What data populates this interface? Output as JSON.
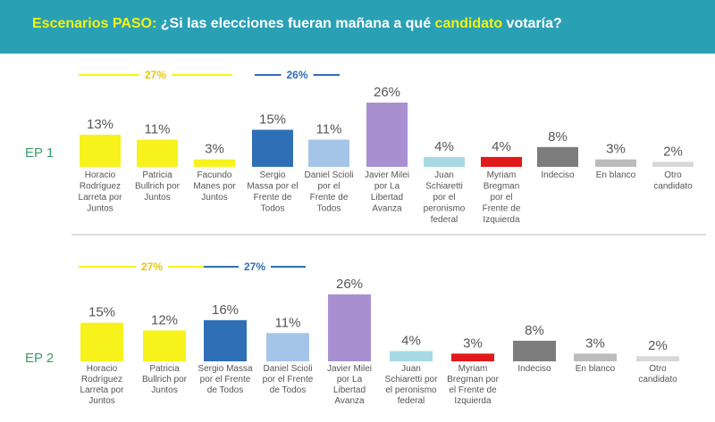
{
  "header": {
    "title_prefix": "Escenarios PASO:",
    "title_mid": " ¿Si las elecciones fueran mañana a qué ",
    "title_highlight": "candidato",
    "title_suffix": " votaría?"
  },
  "colors": {
    "header_bg": "#2aa0b4",
    "yellow": "#f7f21c",
    "dark_blue": "#2e6fb5",
    "light_blue": "#a4c5e8",
    "purple": "#a88fd0",
    "cyan": "#a7d9e5",
    "red": "#e2191b",
    "dark_gray": "#7d7d7d",
    "mid_gray": "#bcbcbc",
    "light_gray": "#d8d8d8"
  },
  "chart_data": [
    {
      "type": "bar",
      "name": "EP 1",
      "categories": [
        "Horacio Rodríguez Larreta por Juntos",
        "Patricia Bullrich por Juntos",
        "Facundo Manes por Juntos",
        "Sergio Massa por el Frente de Todos",
        "Daniel Scioli por el Frente de Todos",
        "Javier Milei por La Libertad Avanza",
        "Juan Schiaretti por el peronismo federal",
        "Myriam Bregman por el Frente de Izquierda",
        "Indeciso",
        "En blanco",
        "Otro candidato"
      ],
      "values": [
        13,
        11,
        3,
        15,
        11,
        26,
        4,
        4,
        8,
        3,
        2
      ],
      "value_labels": [
        "13%",
        "11%",
        "3%",
        "15%",
        "11%",
        "26%",
        "4%",
        "4%",
        "8%",
        "3%",
        "2%"
      ],
      "tick_lines": [
        [
          "Horacio",
          "Rodríguez",
          "Larreta por",
          "Juntos"
        ],
        [
          "Patricia",
          "Bullrich por",
          "Juntos"
        ],
        [
          "Facundo",
          "Manes por",
          "Juntos"
        ],
        [
          "Sergio",
          "Massa por el",
          "Frente de",
          "Todos"
        ],
        [
          "Daniel Scioli",
          "por el",
          "Frente de",
          "Todos"
        ],
        [
          "Javier Milei",
          "por La",
          "Libertad",
          "Avanza"
        ],
        [
          "Juan",
          "Schiaretti",
          "por el",
          "peronismo",
          "federal"
        ],
        [
          "Myriam",
          "Bregman",
          "por el",
          "Frente de",
          "Izquierda"
        ],
        [
          "Indeciso"
        ],
        [
          "En blanco"
        ],
        [
          "Otro",
          "candidato"
        ]
      ],
      "color_keys": [
        "yellow",
        "yellow",
        "yellow",
        "dark_blue",
        "light_blue",
        "purple",
        "cyan",
        "red",
        "dark_gray",
        "mid_gray",
        "light_gray"
      ],
      "groups": [
        {
          "label": "27%",
          "color_key": "yellow"
        },
        {
          "label": "26%",
          "color_key": "dark_blue"
        }
      ],
      "ylim": [
        0,
        26
      ]
    },
    {
      "type": "bar",
      "name": "EP 2",
      "categories": [
        "Horacio Rodríguez Larreta por Juntos",
        "Patricia Bullrich por Juntos",
        "Sergio Massa por el Frente de Todos",
        "Daniel Scioli por el Frente de Todos",
        "Javier Milei por La Libertad Avanza",
        "Juan Schiaretti por el peronismo federal",
        "Myriam Bregman por el Frente de Izquierda",
        "Indeciso",
        "En blanco",
        "Otro candidato"
      ],
      "values": [
        15,
        12,
        16,
        11,
        26,
        4,
        3,
        8,
        3,
        2
      ],
      "value_labels": [
        "15%",
        "12%",
        "16%",
        "11%",
        "26%",
        "4%",
        "3%",
        "8%",
        "3%",
        "2%"
      ],
      "tick_lines": [
        [
          "Horacio",
          "Rodríguez",
          "Larreta por",
          "Juntos"
        ],
        [
          "Patricia",
          "Bullrich por",
          "Juntos"
        ],
        [
          "Sergio Massa",
          "por el Frente",
          "de Todos"
        ],
        [
          "Daniel Scioli",
          "por el Frente",
          "de Todos"
        ],
        [
          "Javier Milei",
          "por La",
          "Libertad",
          "Avanza"
        ],
        [
          "Juan",
          "Schiaretti por",
          "el peronismo",
          "federal"
        ],
        [
          "Myriam",
          "Bregman por",
          "el Frente de",
          "Izquierda"
        ],
        [
          "Indeciso"
        ],
        [
          "En blanco"
        ],
        [
          "Otro",
          "candidato"
        ]
      ],
      "color_keys": [
        "yellow",
        "yellow",
        "dark_blue",
        "light_blue",
        "purple",
        "cyan",
        "red",
        "dark_gray",
        "mid_gray",
        "light_gray"
      ],
      "groups": [
        {
          "label": "27%",
          "color_key": "yellow"
        },
        {
          "label": "27%",
          "color_key": "dark_blue"
        }
      ],
      "ylim": [
        0,
        26
      ]
    }
  ]
}
